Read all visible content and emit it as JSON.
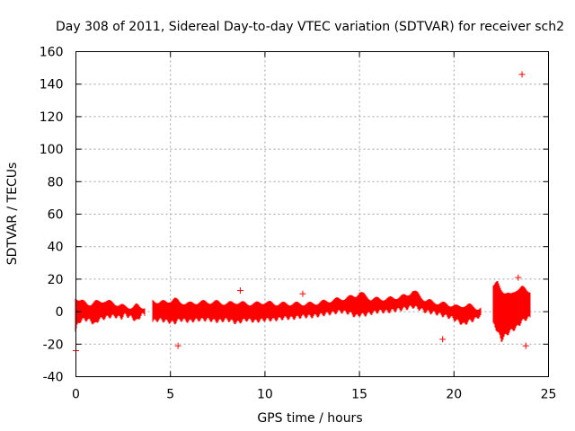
{
  "chart_data": {
    "type": "scatter",
    "title": "Day 308 of 2011, Sidereal Day-to-day VTEC variation (SDTVAR) for receiver sch2",
    "xlabel": "GPS time / hours",
    "ylabel": "SDTVAR / TECUs",
    "xlim": [
      0,
      25
    ],
    "ylim": [
      -40,
      160
    ],
    "xticks": [
      0,
      5,
      10,
      15,
      20,
      25
    ],
    "yticks": [
      -40,
      -20,
      0,
      20,
      40,
      60,
      80,
      100,
      120,
      140,
      160
    ],
    "grid": true,
    "marker": "+",
    "series_color": "#ff0000",
    "series": [
      {
        "name": "SDTVAR",
        "bands": [
          {
            "x": 0.0,
            "lo": -12,
            "hi": 9
          },
          {
            "x": 0.1,
            "lo": -8,
            "hi": 8
          },
          {
            "x": 0.2,
            "lo": -6,
            "hi": 7
          },
          {
            "x": 0.4,
            "lo": -5,
            "hi": 6
          },
          {
            "x": 0.6,
            "lo": -5,
            "hi": 5
          },
          {
            "x": 0.8,
            "lo": -6,
            "hi": 5
          },
          {
            "x": 1.0,
            "lo": -8,
            "hi": 6
          },
          {
            "x": 1.2,
            "lo": -5,
            "hi": 6
          },
          {
            "x": 1.5,
            "lo": -4,
            "hi": 7
          },
          {
            "x": 1.8,
            "lo": -3,
            "hi": 6
          },
          {
            "x": 2.1,
            "lo": -3,
            "hi": 5
          },
          {
            "x": 2.4,
            "lo": -4,
            "hi": 4
          },
          {
            "x": 2.6,
            "lo": -2,
            "hi": 3
          },
          {
            "x": 3.0,
            "lo": -4,
            "hi": 3
          },
          {
            "x": 3.2,
            "lo": -6,
            "hi": 4
          },
          {
            "x": 3.4,
            "lo": -3,
            "hi": 3
          },
          {
            "x": 3.5,
            "lo": -2,
            "hi": 3
          },
          {
            "x": 4.1,
            "lo": -6,
            "hi": 7
          },
          {
            "x": 4.4,
            "lo": -5,
            "hi": 6
          },
          {
            "x": 4.8,
            "lo": -6,
            "hi": 6
          },
          {
            "x": 5.2,
            "lo": -7,
            "hi": 8
          },
          {
            "x": 5.5,
            "lo": -5,
            "hi": 6
          },
          {
            "x": 6.0,
            "lo": -6,
            "hi": 5
          },
          {
            "x": 6.5,
            "lo": -5,
            "hi": 6
          },
          {
            "x": 7.0,
            "lo": -5,
            "hi": 6
          },
          {
            "x": 7.5,
            "lo": -6,
            "hi": 6
          },
          {
            "x": 8.0,
            "lo": -5,
            "hi": 5
          },
          {
            "x": 8.5,
            "lo": -7,
            "hi": 6
          },
          {
            "x": 9.0,
            "lo": -5,
            "hi": 5
          },
          {
            "x": 9.5,
            "lo": -6,
            "hi": 5
          },
          {
            "x": 10.0,
            "lo": -5,
            "hi": 6
          },
          {
            "x": 10.5,
            "lo": -5,
            "hi": 5
          },
          {
            "x": 11.0,
            "lo": -4,
            "hi": 5
          },
          {
            "x": 11.5,
            "lo": -4,
            "hi": 5
          },
          {
            "x": 12.0,
            "lo": -3,
            "hi": 5
          },
          {
            "x": 12.5,
            "lo": -3,
            "hi": 5
          },
          {
            "x": 13.0,
            "lo": -2,
            "hi": 6
          },
          {
            "x": 13.5,
            "lo": -1,
            "hi": 7
          },
          {
            "x": 14.0,
            "lo": 0,
            "hi": 8
          },
          {
            "x": 14.5,
            "lo": -1,
            "hi": 9
          },
          {
            "x": 14.8,
            "lo": -3,
            "hi": 10
          },
          {
            "x": 15.0,
            "lo": -2,
            "hi": 12
          },
          {
            "x": 15.3,
            "lo": -2,
            "hi": 10
          },
          {
            "x": 15.6,
            "lo": -1,
            "hi": 8
          },
          {
            "x": 16.0,
            "lo": 0,
            "hi": 8
          },
          {
            "x": 16.5,
            "lo": 0,
            "hi": 8
          },
          {
            "x": 17.0,
            "lo": 1,
            "hi": 9
          },
          {
            "x": 17.5,
            "lo": 2,
            "hi": 10
          },
          {
            "x": 17.8,
            "lo": 3,
            "hi": 13
          },
          {
            "x": 18.1,
            "lo": 2,
            "hi": 11
          },
          {
            "x": 18.5,
            "lo": 0,
            "hi": 7
          },
          {
            "x": 19.0,
            "lo": -1,
            "hi": 6
          },
          {
            "x": 19.3,
            "lo": -2,
            "hi": 5
          },
          {
            "x": 19.6,
            "lo": -3,
            "hi": 5
          },
          {
            "x": 19.9,
            "lo": -4,
            "hi": 4
          },
          {
            "x": 20.2,
            "lo": -6,
            "hi": 3
          },
          {
            "x": 20.5,
            "lo": -8,
            "hi": 4
          },
          {
            "x": 20.8,
            "lo": -6,
            "hi": 4
          },
          {
            "x": 21.1,
            "lo": -5,
            "hi": 3
          },
          {
            "x": 21.3,
            "lo": -3,
            "hi": 2
          },
          {
            "x": 22.1,
            "lo": -8,
            "hi": 16
          },
          {
            "x": 22.3,
            "lo": -12,
            "hi": 18
          },
          {
            "x": 22.5,
            "lo": -18,
            "hi": 14
          },
          {
            "x": 22.7,
            "lo": -15,
            "hi": 12
          },
          {
            "x": 23.0,
            "lo": -12,
            "hi": 10
          },
          {
            "x": 23.3,
            "lo": -10,
            "hi": 14
          },
          {
            "x": 23.6,
            "lo": -6,
            "hi": 15
          },
          {
            "x": 23.9,
            "lo": -4,
            "hi": 13
          }
        ],
        "outliers": [
          {
            "x": 0.0,
            "y": -24
          },
          {
            "x": 5.4,
            "y": -21
          },
          {
            "x": 8.7,
            "y": 13
          },
          {
            "x": 12.0,
            "y": 11
          },
          {
            "x": 19.4,
            "y": -17
          },
          {
            "x": 23.6,
            "y": 146
          },
          {
            "x": 23.4,
            "y": 21
          },
          {
            "x": 23.8,
            "y": -21
          }
        ]
      }
    ]
  }
}
